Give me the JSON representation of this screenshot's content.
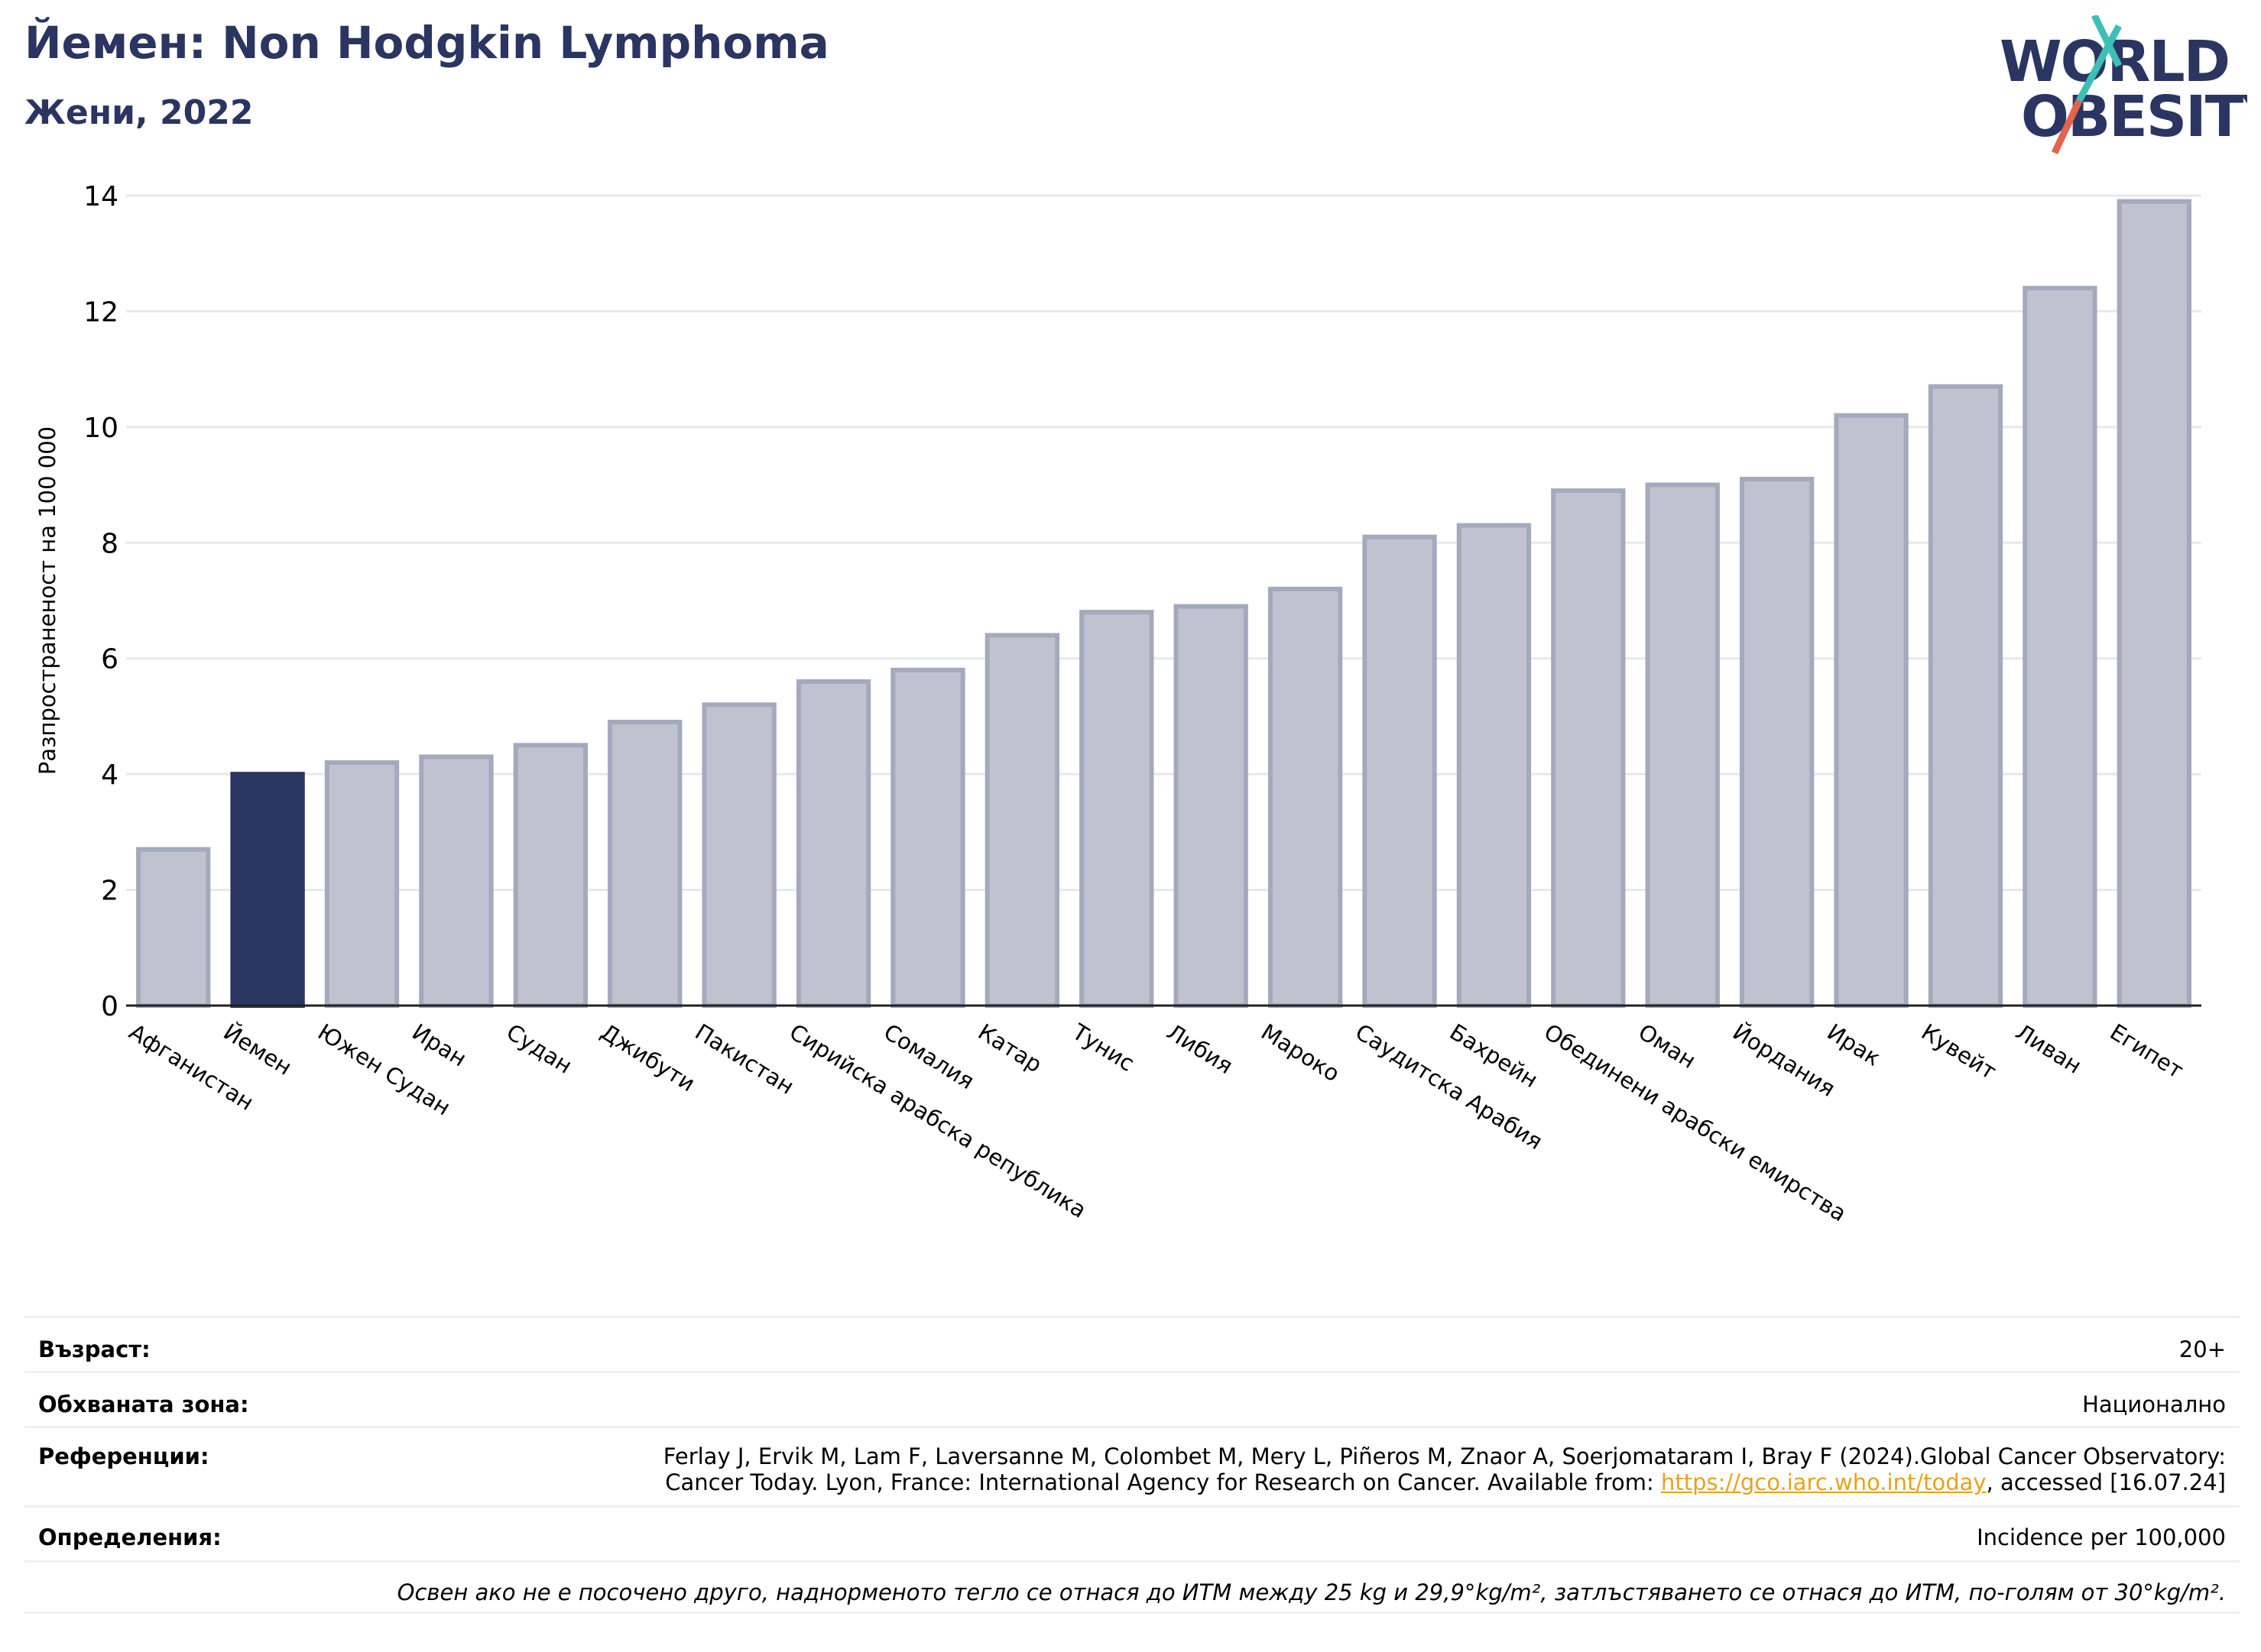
{
  "header": {
    "title": "Йемен: Non Hodgkin Lymphoma",
    "subtitle": "Жени, 2022"
  },
  "logo": {
    "line1": "WORLD",
    "line2": "OBESITY"
  },
  "colors": {
    "highlight": "#2b3561",
    "bar": "#c0c3cf",
    "bar_edge": "#a4a9bd",
    "title": "#2b3561"
  },
  "chart_data": {
    "type": "bar",
    "ylabel": "Разпространеност  на 100 000",
    "ylim": [
      0,
      14
    ],
    "yticks": [
      0,
      2,
      4,
      6,
      8,
      10,
      12,
      14
    ],
    "grid": true,
    "highlight": "Йемен",
    "categories": [
      "Афганистан",
      "Йемен",
      "Южен Судан",
      "Иран",
      "Судан",
      "Джибути",
      "Пакистан",
      "Сирийска арабска република",
      "Сомалия",
      "Катар",
      "Тунис",
      "Либия",
      "Мароко",
      "Саудитска Арабия",
      "Бахрейн",
      "Обединени арабски емирства",
      "Оман",
      "Йордания",
      "Ирак",
      "Кувейт",
      "Ливан",
      "Египет"
    ],
    "values": [
      2.7,
      4.0,
      4.2,
      4.3,
      4.5,
      4.9,
      5.2,
      5.6,
      5.8,
      6.4,
      6.8,
      6.9,
      7.2,
      8.1,
      8.3,
      8.9,
      9.0,
      9.1,
      10.2,
      10.7,
      12.4,
      13.9
    ]
  },
  "info": {
    "age_label": "Възраст:",
    "age_value": "20+",
    "area_label": "Обхваната зона:",
    "area_value": "Национално",
    "ref_label": "Референции:",
    "ref_line1": "Ferlay J, Ervik M, Lam F, Laversanne M, Colombet M, Mery L, Piñeros M, Znaor A, Soerjomataram I, Bray F (2024).Global Cancer Observatory:",
    "ref_line2_pre": "Cancer Today. Lyon, France: International Agency for Research on Cancer. Available from: ",
    "ref_link": "https://gco.iarc.who.int/today",
    "ref_line2_post": ", accessed [16.07.24]",
    "def_label": "Определения:",
    "def_value": "Incidence per 100,000",
    "note": "Освен ако не е посочено друго, наднорменото тегло се отнася до ИТМ между 25 kg и 29,9°kg/m², затлъстяването се отнася до ИТМ, по-голям от 30°kg/m²."
  }
}
